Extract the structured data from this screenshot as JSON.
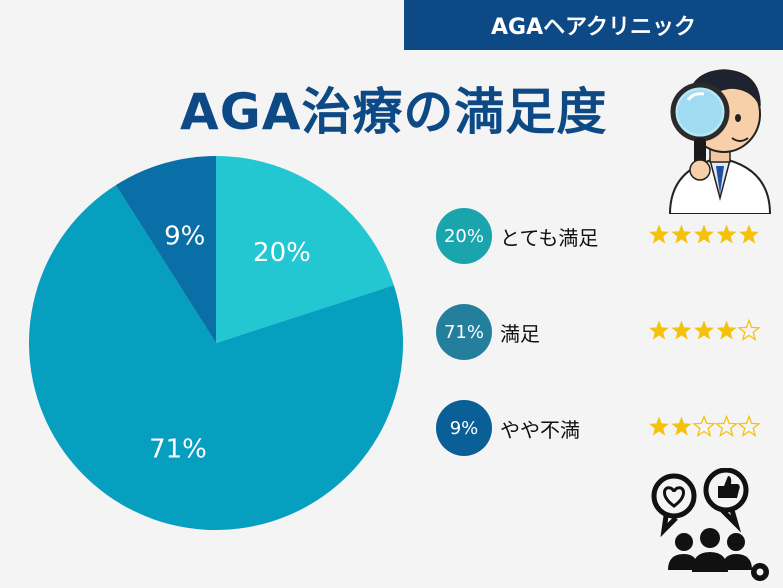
{
  "banner": {
    "text": "AGAヘアクリニック"
  },
  "title": "AGA治療の満足度",
  "colors": {
    "brand": "#0d4a85",
    "very_satisfied": "#22c7d1",
    "satisfied": "#079fc0",
    "somewhat_unsatisfied": "#0a6fa6",
    "star_fill": "#f5c20b"
  },
  "chart_data": {
    "type": "pie",
    "slices": [
      {
        "label": "とても満足",
        "value": 20,
        "value_label": "20%",
        "stars": 5
      },
      {
        "label": "満足",
        "value": 71,
        "value_label": "71%",
        "stars": 4
      },
      {
        "label": "やや不満",
        "value": 9,
        "value_label": "9%",
        "stars": 2
      }
    ],
    "max_stars": 5
  },
  "legend": [
    {
      "badge": "20%",
      "label": "とても満足",
      "badge_color": "#1aa5ad"
    },
    {
      "badge": "71%",
      "label": "満足",
      "badge_color": "#237f9c"
    },
    {
      "badge": "9%",
      "label": "やや不満",
      "badge_color": "#0a5f96"
    }
  ],
  "icons": {
    "doctor": "doctor-magnifier-icon",
    "feedback": "people-feedback-icon"
  }
}
